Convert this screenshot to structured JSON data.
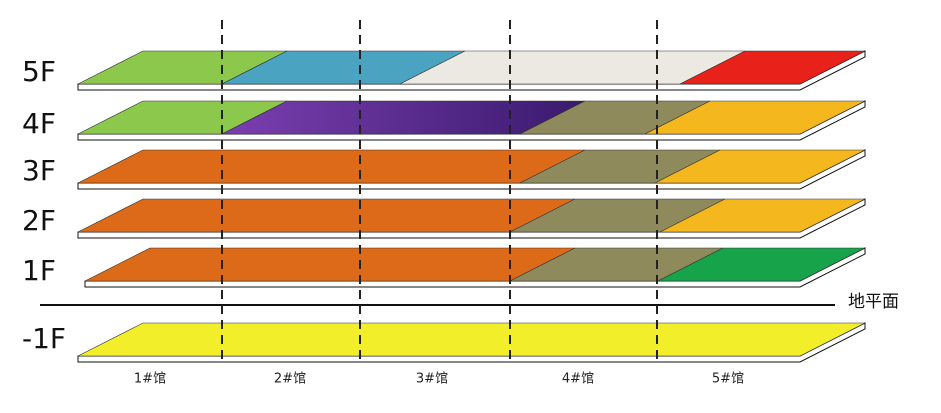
{
  "floors": [
    "5F",
    "4F",
    "3F",
    "2F",
    "1F",
    "-1F"
  ],
  "halls": [
    "1#馆",
    "2#馆",
    "3#馆",
    "4#馆",
    "5#馆"
  ],
  "ground_label": "地平面"
}
